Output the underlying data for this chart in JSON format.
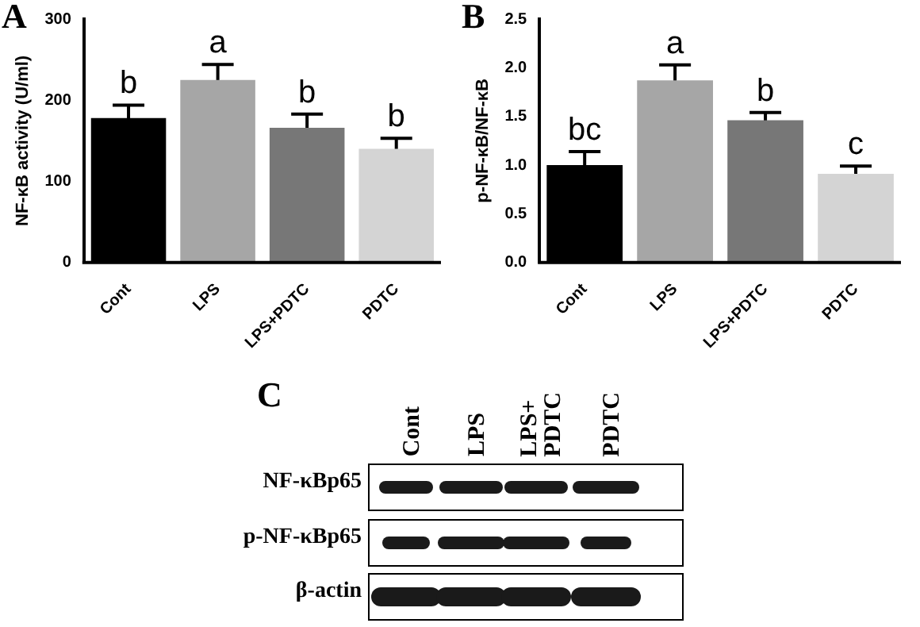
{
  "chart_data": [
    {
      "type": "bar",
      "title": "A",
      "ylabel": "NF-κB activity (U/ml)",
      "categories": [
        "Cont",
        "LPS",
        "LPS+PDTC",
        "PDTC"
      ],
      "values": [
        178,
        225,
        166,
        140
      ],
      "errors": [
        16,
        19,
        17,
        13
      ],
      "colors": [
        "#000000",
        "#a6a6a6",
        "#777777",
        "#d4d4d4"
      ],
      "ylim": [
        0,
        300
      ],
      "yticks": [
        0,
        100,
        200,
        300
      ],
      "grid": false,
      "legend": false,
      "annotations": [
        {
          "text": "b",
          "x": "Cont",
          "y": 194
        },
        {
          "text": "a",
          "x": "LPS",
          "y": 244
        },
        {
          "text": "b",
          "x": "LPS+PDTC",
          "y": 183
        },
        {
          "text": "b",
          "x": "PDTC",
          "y": 153
        }
      ]
    },
    {
      "type": "bar",
      "title": "B",
      "ylabel": "p-NF-κB/NF-κB",
      "categories": [
        "Cont",
        "LPS",
        "LPS+PDTC",
        "PDTC"
      ],
      "values": [
        1.0,
        1.87,
        1.46,
        0.91
      ],
      "errors": [
        0.14,
        0.16,
        0.08,
        0.08
      ],
      "colors": [
        "#000000",
        "#a6a6a6",
        "#777777",
        "#d4d4d4"
      ],
      "ylim": [
        0,
        2.5
      ],
      "yticks": [
        {
          "value": 0,
          "label": "0.0"
        },
        {
          "value": 0.5,
          "label": "0.5"
        },
        {
          "value": 1,
          "label": "1.0"
        },
        {
          "value": 1.5,
          "label": "1.5"
        },
        {
          "value": 2,
          "label": "2.0"
        },
        {
          "value": 2.5,
          "label": "2.5"
        }
      ],
      "grid": false,
      "legend": false,
      "annotations": [
        {
          "text": "bc",
          "x": "Cont",
          "y": 1.14
        },
        {
          "text": "a",
          "x": "LPS",
          "y": 2.03
        },
        {
          "text": "b",
          "x": "LPS+PDTC",
          "y": 1.54
        },
        {
          "text": "c",
          "x": "PDTC",
          "y": 0.99
        }
      ]
    },
    {
      "type": "other",
      "title": "C",
      "categories": [
        "Cont",
        "LPS",
        "LPS+\nPDTC",
        "PDTC"
      ],
      "annotations": [
        "NF-κBp65",
        "p-NF-κBp65",
        "β-actin"
      ]
    }
  ]
}
